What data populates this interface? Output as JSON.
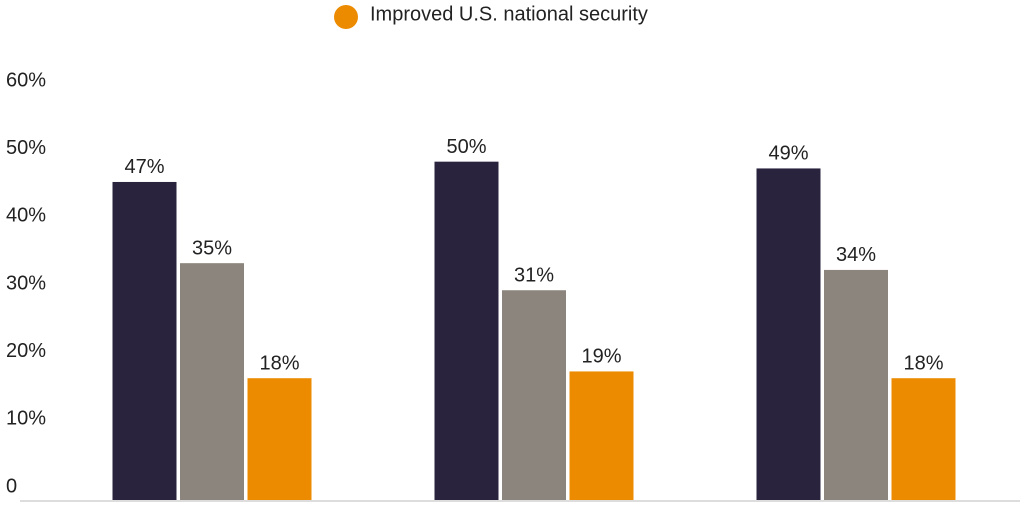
{
  "chart_data": {
    "type": "bar",
    "categories": [
      null,
      null,
      null
    ],
    "series": [
      {
        "color": "#2a233d",
        "values": [
          47,
          50,
          49
        ],
        "value_labels": [
          "47%",
          "50%",
          "49%"
        ]
      },
      {
        "color": "#8c857d",
        "values": [
          35,
          31,
          34
        ],
        "value_labels": [
          "35%",
          "31%",
          "34%"
        ]
      },
      {
        "name": "Improved U.S. national security",
        "color": "#ec8b00",
        "values": [
          18,
          19,
          18
        ],
        "value_labels": [
          "18%",
          "19%",
          "18%"
        ]
      }
    ],
    "ylim": [
      0,
      60
    ],
    "yticks": [
      0,
      {
        "value": 10,
        "label": "10%"
      },
      {
        "value": 20,
        "label": "20%"
      },
      {
        "value": 30,
        "label": "30%"
      },
      {
        "value": 40,
        "label": "40%"
      },
      {
        "value": 50,
        "label": "50%"
      },
      {
        "value": 60,
        "label": "60%"
      }
    ],
    "grid": false
  }
}
